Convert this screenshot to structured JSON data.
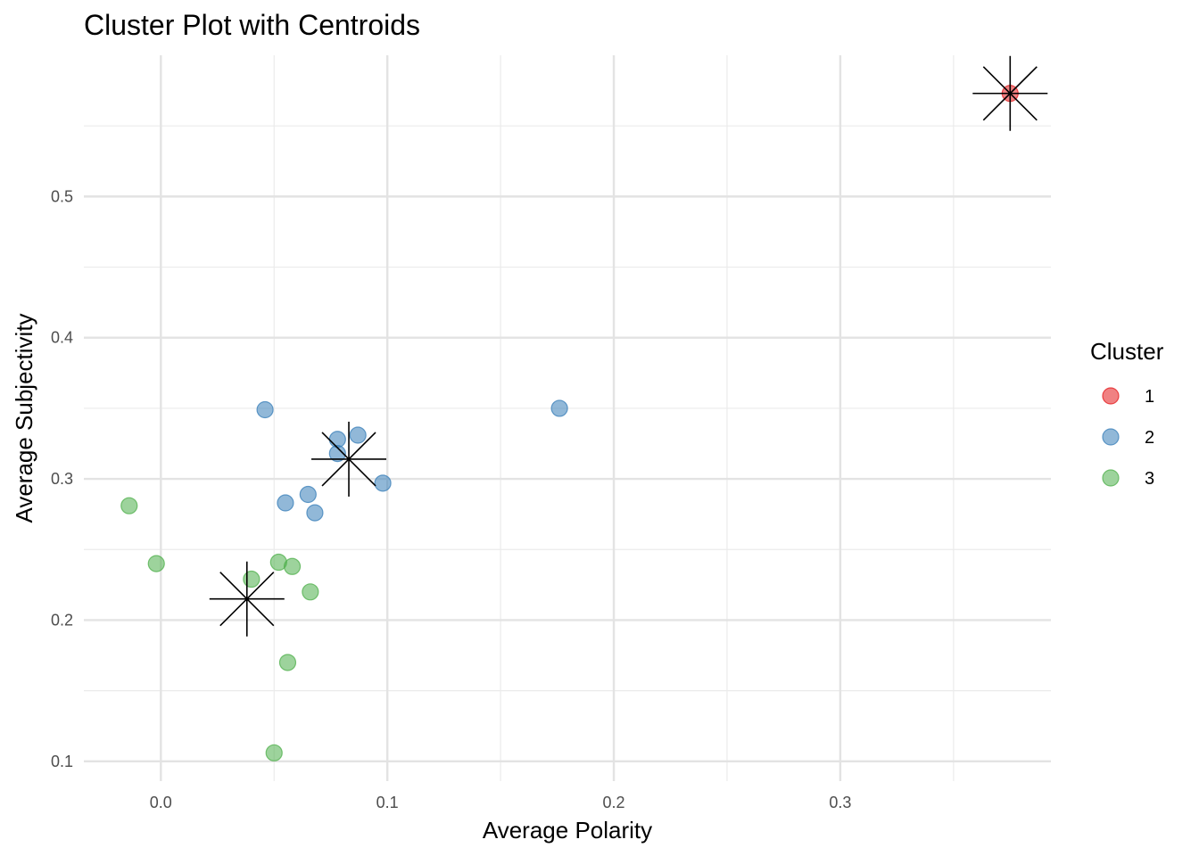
{
  "chart_data": {
    "type": "scatter",
    "title": "Cluster Plot with Centroids",
    "xlabel": "Average Polarity",
    "ylabel": "Average Subjectivity",
    "xlim": [
      -0.034,
      0.393
    ],
    "ylim": [
      0.086,
      0.6
    ],
    "x_ticks": [
      0.0,
      0.1,
      0.2,
      0.3
    ],
    "x_tick_labels": [
      "0.0",
      "0.1",
      "0.2",
      "0.3"
    ],
    "y_ticks": [
      0.1,
      0.2,
      0.3,
      0.4,
      0.5
    ],
    "y_tick_labels": [
      "0.1",
      "0.2",
      "0.3",
      "0.4",
      "0.5"
    ],
    "grid": true,
    "legend": {
      "title": "Cluster",
      "position": "right"
    },
    "series": [
      {
        "name": "1",
        "color": "#e41a1c",
        "points": [
          [
            0.375,
            0.573
          ]
        ]
      },
      {
        "name": "2",
        "color": "#377eb8",
        "points": [
          [
            0.046,
            0.349
          ],
          [
            0.078,
            0.328
          ],
          [
            0.087,
            0.331
          ],
          [
            0.078,
            0.318
          ],
          [
            0.098,
            0.297
          ],
          [
            0.065,
            0.289
          ],
          [
            0.055,
            0.283
          ],
          [
            0.068,
            0.276
          ],
          [
            0.176,
            0.35
          ]
        ]
      },
      {
        "name": "3",
        "color": "#4daf4a",
        "points": [
          [
            -0.014,
            0.281
          ],
          [
            -0.002,
            0.24
          ],
          [
            0.052,
            0.241
          ],
          [
            0.058,
            0.238
          ],
          [
            0.04,
            0.229
          ],
          [
            0.066,
            0.22
          ],
          [
            0.056,
            0.17
          ],
          [
            0.05,
            0.106
          ]
        ]
      }
    ],
    "centroids": [
      [
        0.375,
        0.573
      ],
      [
        0.083,
        0.314
      ],
      [
        0.038,
        0.215
      ]
    ]
  }
}
